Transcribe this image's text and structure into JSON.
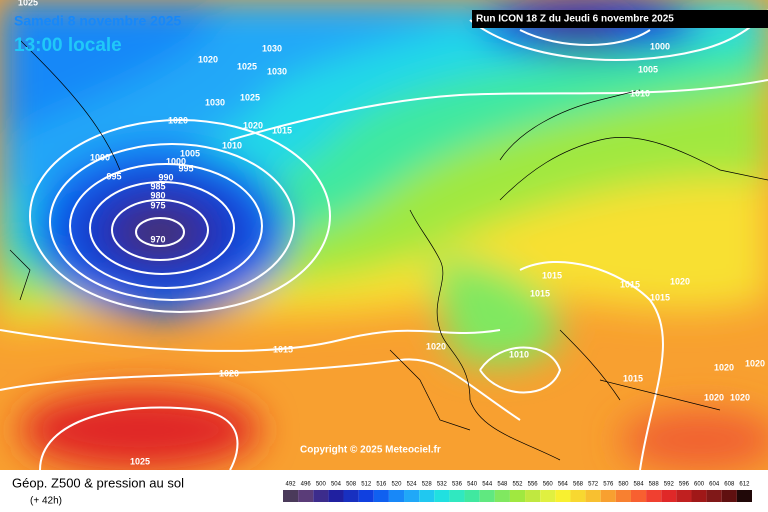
{
  "header": {
    "date": "Samedi 8 novembre 2025",
    "time": "13:00 locale",
    "run": "Run ICON 18 Z du Jeudi 6 novembre 2025"
  },
  "copyright": "Copyright © 2025 Meteociel.fr",
  "footer": {
    "title": "Géop. Z500 & pression au sol",
    "subtitle": "(+ 42h)"
  },
  "isobar_labels": [
    "1025",
    "1020",
    "1025",
    "1030",
    "1030",
    "1030",
    "1025",
    "1020",
    "1020",
    "1015",
    "1010",
    "1005",
    "1000",
    "995",
    "1000",
    "995",
    "990",
    "985",
    "980",
    "975",
    "970",
    "1015",
    "1020",
    "1025",
    "1020",
    "1010",
    "1015",
    "1015",
    "1015",
    "1015",
    "1020",
    "1020",
    "1020",
    "1015",
    "1020",
    "1020",
    "1000",
    "1005",
    "1010"
  ],
  "scale": {
    "labels": [
      492,
      496,
      500,
      504,
      508,
      512,
      516,
      520,
      524,
      528,
      532,
      536,
      540,
      544,
      548,
      552,
      556,
      560,
      564,
      568,
      572,
      576,
      580,
      584,
      588,
      592,
      596,
      600,
      604,
      608,
      612
    ],
    "colors": [
      "#4a3a5a",
      "#5a3c78",
      "#3c2c8c",
      "#2020a0",
      "#1830c0",
      "#1040e0",
      "#1060f0",
      "#1888f8",
      "#20a8f8",
      "#20c8f0",
      "#20e0e0",
      "#30e8c0",
      "#40e8a0",
      "#60e880",
      "#80e860",
      "#a0e840",
      "#c0e840",
      "#e0f040",
      "#f8f030",
      "#f8d830",
      "#f8c030",
      "#f8a030",
      "#f88030",
      "#f86030",
      "#f04030",
      "#e02828",
      "#c02020",
      "#a01818",
      "#801818",
      "#601010",
      "#200808"
    ]
  }
}
